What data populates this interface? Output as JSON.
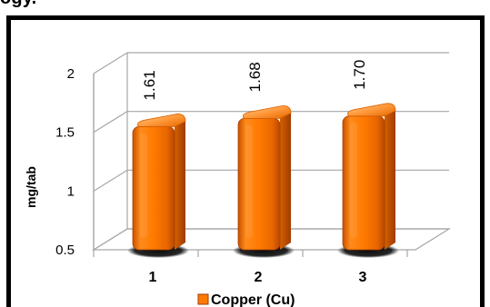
{
  "page": {
    "top_fragment": "ogy."
  },
  "chart_data": {
    "type": "bar",
    "categories": [
      "1",
      "2",
      "3"
    ],
    "series": [
      {
        "name": "Copper (Cu)",
        "values": [
          1.61,
          1.68,
          1.7
        ],
        "data_labels": [
          "1.61",
          "1.68",
          "1.70"
        ],
        "color": "#ff7a00"
      }
    ],
    "ylabel": "mg/tab",
    "ylim": [
      0.5,
      2
    ],
    "yticks": [
      0.5,
      1,
      1.5,
      2
    ],
    "ytick_labels": [
      "0.5",
      "1",
      "1.5",
      "2"
    ],
    "grid": true,
    "legend": "bottom",
    "style": "3d"
  },
  "colors": {
    "bar_main": "#ff7a00",
    "bar_dark": "#c85000",
    "bar_light": "#ffad5a",
    "grid": "#a6a6a6",
    "frame": "#000000"
  }
}
